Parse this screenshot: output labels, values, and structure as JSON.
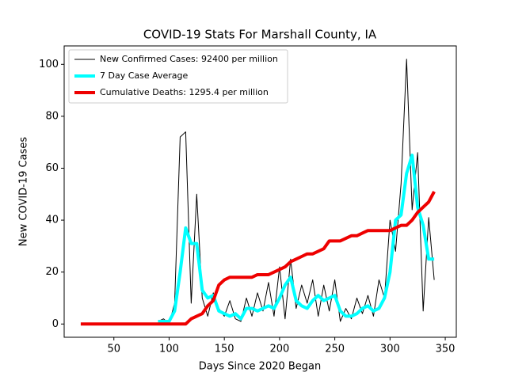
{
  "chart_data": {
    "type": "line",
    "title": "COVID-19 Stats For Marshall County, IA",
    "x_label": "Days Since 2020 Began",
    "y_label": "New COVID-19 Cases",
    "xlim": [
      5,
      360
    ],
    "ylim": [
      -5.1,
      107.1
    ],
    "xticks": [
      50,
      100,
      150,
      200,
      250,
      300,
      350
    ],
    "yticks": [
      0,
      20,
      40,
      60,
      80,
      100
    ],
    "grid": false,
    "legend": "upper left",
    "x": [
      20,
      25,
      30,
      35,
      40,
      45,
      50,
      55,
      60,
      65,
      70,
      75,
      80,
      85,
      90,
      95,
      100,
      105,
      110,
      115,
      120,
      125,
      130,
      135,
      140,
      145,
      150,
      155,
      160,
      165,
      170,
      175,
      180,
      185,
      190,
      195,
      200,
      205,
      210,
      215,
      220,
      225,
      230,
      235,
      240,
      245,
      250,
      255,
      260,
      265,
      270,
      275,
      280,
      285,
      290,
      295,
      300,
      305,
      310,
      315,
      320,
      325,
      330,
      335,
      340
    ],
    "series": [
      {
        "name": "New Confirmed Cases: 92400 per million",
        "color": "#000000",
        "width": 1,
        "values": [
          null,
          null,
          null,
          null,
          null,
          null,
          null,
          null,
          null,
          null,
          null,
          null,
          null,
          null,
          1,
          2,
          0,
          8,
          72,
          74,
          8,
          50,
          10,
          3,
          12,
          6,
          3,
          9,
          2,
          1,
          10,
          3,
          12,
          5,
          16,
          3,
          22,
          2,
          25,
          6,
          15,
          8,
          17,
          3,
          15,
          5,
          17,
          1,
          6,
          2,
          10,
          4,
          11,
          3,
          17,
          10,
          40,
          28,
          54,
          102,
          44,
          66,
          5,
          41,
          17
        ]
      },
      {
        "name": "7 Day Case Average",
        "color": "#00ffff",
        "width": 4,
        "values": [
          null,
          null,
          null,
          null,
          null,
          null,
          null,
          null,
          null,
          null,
          null,
          null,
          null,
          null,
          1,
          1,
          1,
          5,
          20,
          37,
          31,
          31,
          13,
          10,
          11,
          5,
          4,
          3,
          4,
          2,
          6,
          6,
          5,
          6,
          7,
          6,
          10,
          15,
          18,
          9,
          7,
          6,
          9,
          11,
          9,
          10,
          11,
          5,
          3,
          3,
          4,
          6,
          7,
          5,
          6,
          10,
          20,
          40,
          42,
          58,
          65,
          45,
          38,
          25,
          25
        ]
      },
      {
        "name": "Cumulative Deaths: 1295.4 per million",
        "color": "#ee0000",
        "width": 4,
        "values": [
          0,
          0,
          0,
          0,
          0,
          0,
          0,
          0,
          0,
          0,
          0,
          0,
          0,
          0,
          0,
          0,
          0,
          0,
          0,
          0,
          2,
          3,
          4,
          7,
          9,
          15,
          17,
          18,
          18,
          18,
          18,
          18,
          19,
          19,
          19,
          20,
          21,
          22,
          24,
          25,
          26,
          27,
          27,
          28,
          29,
          32,
          32,
          32,
          33,
          34,
          34,
          35,
          36,
          36,
          36,
          36,
          36,
          37,
          38,
          38,
          40,
          43,
          45,
          47,
          51
        ]
      }
    ]
  }
}
